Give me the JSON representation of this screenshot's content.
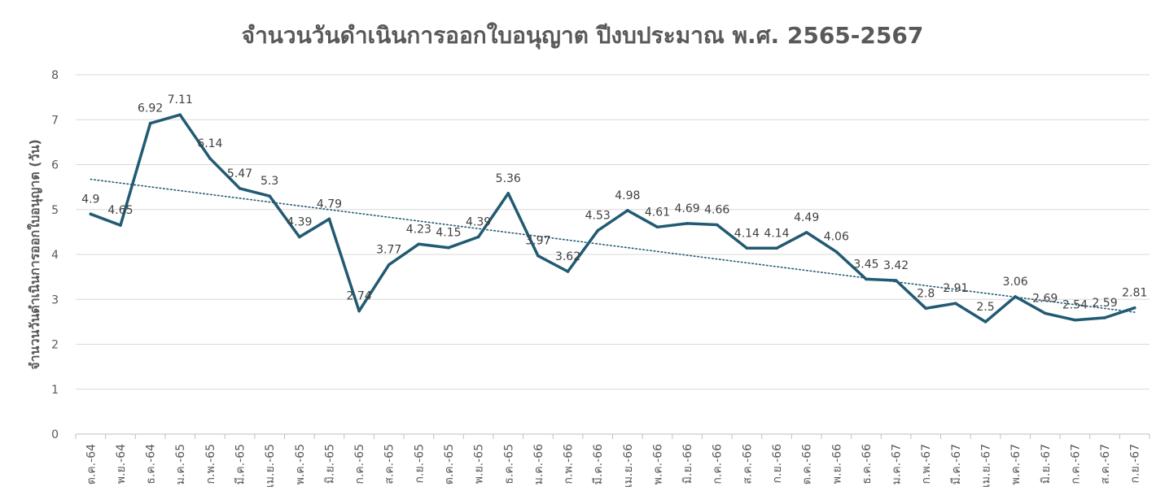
{
  "chart_data": {
    "type": "line",
    "title": "จำนวนวันดำเนินการออกใบอนุญาต ปีงบประมาณ พ.ศ. 2565-2567",
    "ylabel": "จำนวนวันดำเนินการออกใบอนุญาต (วัน)",
    "xlabel": "",
    "ylim": [
      0,
      8
    ],
    "yticks": [
      "0",
      "1",
      "2",
      "3",
      "4",
      "5",
      "6",
      "7",
      "8"
    ],
    "grid": true,
    "legend": "none",
    "categories": [
      "ต.ค.-64",
      "พ.ย.-64",
      "ธ.ค.-64",
      "ม.ค.-65",
      "ก.พ.-65",
      "มี.ค.-65",
      "เม.ย.-65",
      "พ.ค.-65",
      "มิ.ย.-65",
      "ก.ค.-65",
      "ส.ค.-65",
      "ก.ย.-65",
      "ต.ค.-65",
      "พ.ย.-65",
      "ธ.ค.-65",
      "ม.ค.-66",
      "ก.พ.-66",
      "มี.ค.-66",
      "เม.ย.-66",
      "พ.ค.-66",
      "มิ.ย.-66",
      "ก.ค.-66",
      "ส.ค.-66",
      "ก.ย.-66",
      "ต.ค.-66",
      "พ.ย.-66",
      "ธ.ค.-66",
      "ม.ค.-67",
      "ก.พ.-67",
      "มี.ค.-67",
      "เม.ย.-67",
      "พ.ค.-67",
      "มิ.ย.-67",
      "ก.ค.-67",
      "ส.ค.-67",
      "ก.ย.-67"
    ],
    "values": [
      4.9,
      4.65,
      6.92,
      7.11,
      6.14,
      5.47,
      5.3,
      4.39,
      4.79,
      2.74,
      3.77,
      4.23,
      4.15,
      4.39,
      5.36,
      3.97,
      3.62,
      4.53,
      4.98,
      4.61,
      4.69,
      4.66,
      4.14,
      4.14,
      4.49,
      4.06,
      3.45,
      3.42,
      2.8,
      2.91,
      2.5,
      3.06,
      2.69,
      2.54,
      2.59,
      2.81
    ],
    "data_labels": [
      "4.9",
      "4.65",
      "6.92",
      "7.11",
      "6.14",
      "5.47",
      "5.3",
      "4.39",
      "4.79",
      "2.74",
      "3.77",
      "4.23",
      "4.15",
      "4.39",
      "5.36",
      "3.97",
      "3.62",
      "4.53",
      "4.98",
      "4.61",
      "4.69",
      "4.66",
      "4.14",
      "4.14",
      "4.49",
      "4.06",
      "3.45",
      "3.42",
      "2.8",
      "2.91",
      "2.5",
      "3.06",
      "2.69",
      "2.54",
      "2.59",
      "2.81"
    ],
    "trendline": {
      "type": "linear",
      "style": "dotted"
    },
    "colors": {
      "series": "#215a73",
      "trend": "#215a73",
      "grid": "#d9d9d9",
      "text": "#595959"
    }
  }
}
